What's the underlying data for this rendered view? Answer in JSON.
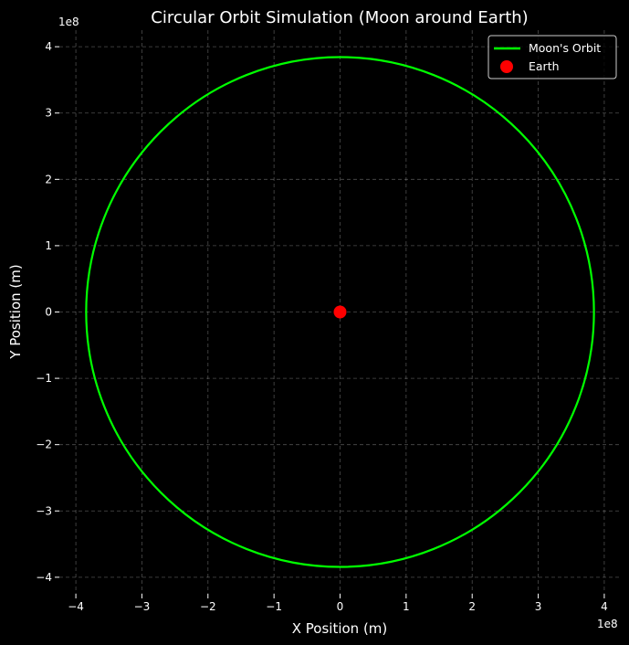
{
  "chart_data": {
    "type": "line",
    "title": "Circular Orbit Simulation (Moon around Earth)",
    "xlabel": "X Position (m)",
    "ylabel": "Y Position (m)",
    "x_offset_label": "1e8",
    "y_offset_label": "1e8",
    "xlim": [
      -425000000.0,
      425000000.0
    ],
    "ylim": [
      -425000000.0,
      425000000.0
    ],
    "xticks": [
      -400000000.0,
      -300000000.0,
      -200000000.0,
      -100000000.0,
      0,
      100000000.0,
      200000000.0,
      300000000.0,
      400000000.0
    ],
    "yticks": [
      -400000000.0,
      -300000000.0,
      -200000000.0,
      -100000000.0,
      0,
      100000000.0,
      200000000.0,
      300000000.0,
      400000000.0
    ],
    "xtick_labels": [
      "−4",
      "−3",
      "−2",
      "−1",
      "0",
      "1",
      "2",
      "3",
      "4"
    ],
    "ytick_labels": [
      "−4",
      "−3",
      "−2",
      "−1",
      "0",
      "1",
      "2",
      "3",
      "4"
    ],
    "grid": true,
    "legend_position": "top-right",
    "series": [
      {
        "name": "Moon's Orbit",
        "kind": "circle",
        "center": [
          0,
          0
        ],
        "radius": 384400000.0,
        "color": "#00ff00"
      },
      {
        "name": "Earth",
        "kind": "point",
        "x": 0,
        "y": 0,
        "color": "#ff0000"
      }
    ]
  }
}
